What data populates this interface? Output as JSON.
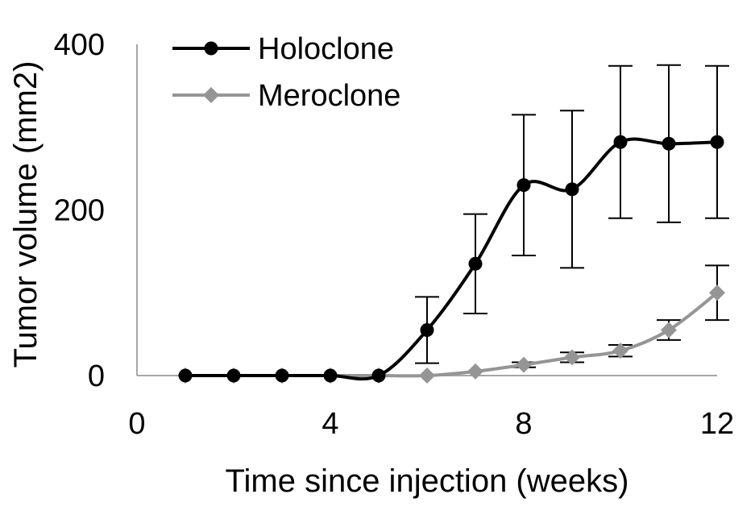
{
  "chart_data": {
    "type": "line",
    "xlabel": "Time since injection (weeks)",
    "ylabel": "Tumor volume (mm2)",
    "xlim": [
      0,
      12
    ],
    "ylim": [
      0,
      400
    ],
    "xticks": [
      0,
      4,
      8,
      12
    ],
    "yticks": [
      0,
      200,
      400
    ],
    "grid": false,
    "legend_position": "top-left",
    "series": [
      {
        "name": "Holoclone",
        "marker": "circle",
        "color": "#000000",
        "x": [
          1,
          2,
          3,
          4,
          5,
          6,
          7,
          8,
          9,
          10,
          11,
          12
        ],
        "values": [
          0,
          0,
          0,
          0,
          0,
          55,
          135,
          230,
          225,
          282,
          280,
          282
        ],
        "error": [
          0,
          0,
          0,
          0,
          0,
          40,
          60,
          85,
          95,
          92,
          95,
          92
        ]
      },
      {
        "name": "Meroclone",
        "marker": "diamond",
        "color": "#959595",
        "x": [
          1,
          2,
          3,
          4,
          5,
          6,
          7,
          8,
          9,
          10,
          11,
          12
        ],
        "values": [
          0,
          0,
          0,
          0,
          0,
          0,
          5,
          13,
          22,
          30,
          55,
          100
        ],
        "error": [
          0,
          0,
          0,
          0,
          0,
          0,
          0,
          3,
          6,
          7,
          12,
          33
        ]
      }
    ]
  }
}
